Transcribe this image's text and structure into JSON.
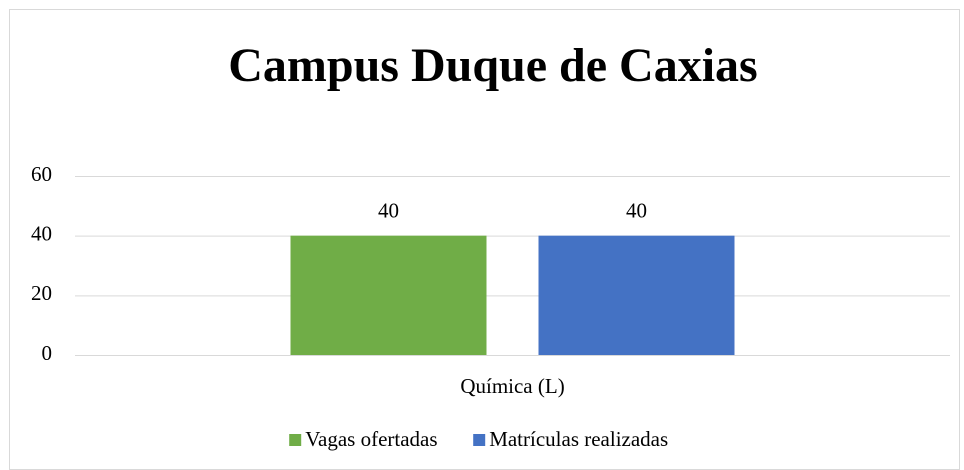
{
  "chart_data": {
    "type": "bar",
    "title": "Campus Duque de Caxias",
    "categories": [
      "Química (L)"
    ],
    "series": [
      {
        "name": "Vagas ofertadas",
        "color": "#70ad47",
        "values": [
          40
        ]
      },
      {
        "name": "Matrículas realizadas",
        "color": "#4472c4",
        "values": [
          40
        ]
      }
    ],
    "ylim": [
      0,
      60
    ],
    "yticks": [
      0,
      20,
      40,
      60
    ],
    "grid": true,
    "legend": "bottom"
  }
}
